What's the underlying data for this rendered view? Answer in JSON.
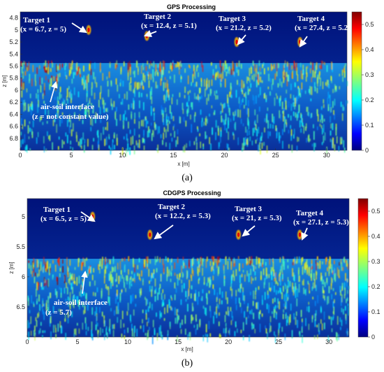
{
  "chart_data": [
    {
      "type": "heatmap",
      "title": "GPS Processing",
      "xlabel": "x [m]",
      "ylabel": "z [m]",
      "xlim": [
        0,
        32
      ],
      "ylim": [
        4.7,
        7.0
      ],
      "y_inverted": true,
      "xticks": [
        "0",
        "5",
        "10",
        "15",
        "20",
        "25",
        "30"
      ],
      "yticks": [
        "4.8",
        "5",
        "5.2",
        "5.4",
        "5.6",
        "5.8",
        "6",
        "6.2",
        "6.4",
        "6.6",
        "6.8"
      ],
      "colorbar": {
        "min": 0,
        "max": 0.55,
        "ticks": [
          "0",
          "0.1",
          "0.2",
          "0.3",
          "0.4",
          "0.5"
        ],
        "colormap": "jet"
      },
      "interface_depth": 5.55,
      "targets": [
        {
          "name": "Target 1",
          "coords": "(x = 6.7, z = 5)",
          "x": 6.7,
          "z": 5.0
        },
        {
          "name": "Target 2",
          "coords": "(x = 12.4, z = 5.1)",
          "x": 12.4,
          "z": 5.1
        },
        {
          "name": "Target 3",
          "coords": "(x = 21.2, z = 5.2)",
          "x": 21.2,
          "z": 5.2
        },
        {
          "name": "Target 4",
          "coords": "(x = 27.4, z = 5.2)",
          "x": 27.4,
          "z": 5.2
        }
      ],
      "interface_note": {
        "line1": "air-soil interface",
        "line2": "(z = not constant value)"
      },
      "caption": "(a)"
    },
    {
      "type": "heatmap",
      "title": "CDGPS Processing",
      "xlabel": "x [m]",
      "ylabel": "z [m]",
      "xlim": [
        0,
        32
      ],
      "ylim": [
        4.7,
        7.0
      ],
      "y_inverted": true,
      "xticks": [
        "0",
        "5",
        "10",
        "15",
        "20",
        "25",
        "30"
      ],
      "yticks": [
        "5",
        "5.5",
        "6",
        "6.5"
      ],
      "colorbar": {
        "min": 0,
        "max": 0.55,
        "ticks": [
          "0",
          "0.1",
          "0.2",
          "0.3",
          "0.4",
          "0.5"
        ],
        "colormap": "jet"
      },
      "interface_depth": 5.7,
      "targets": [
        {
          "name": "Target 1",
          "coords": "(x = 6.5, z = 5)",
          "x": 6.5,
          "z": 5.0
        },
        {
          "name": "Target 2",
          "coords": "(x = 12.2, z = 5.3)",
          "x": 12.2,
          "z": 5.3
        },
        {
          "name": "Target 3",
          "coords": "(x = 21, z = 5.3)",
          "x": 21.0,
          "z": 5.3
        },
        {
          "name": "Target 4",
          "coords": "(x = 27.1, z = 5.3)",
          "x": 27.1,
          "z": 5.3
        }
      ],
      "interface_note": {
        "line1": "air-soil interface",
        "line2": "(z = 5.7)"
      },
      "caption": "(b)"
    }
  ]
}
